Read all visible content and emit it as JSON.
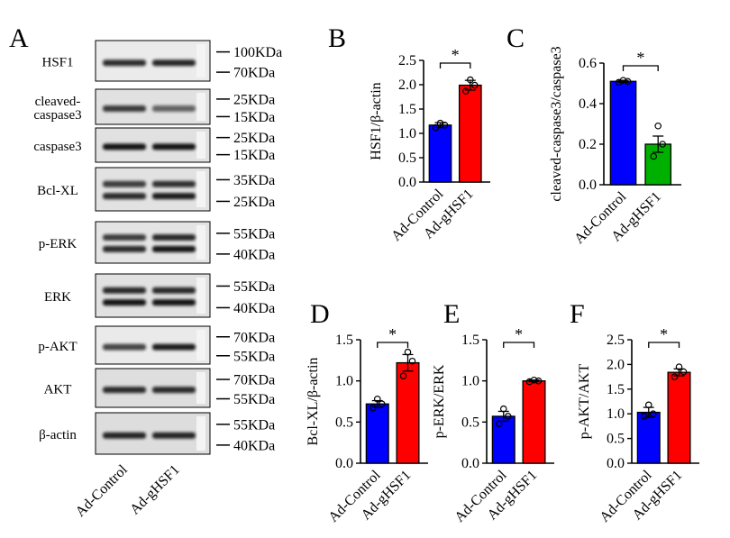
{
  "figure": {
    "panel_a": {
      "letter": "A",
      "rows": [
        {
          "label": "HSF1",
          "markers": [
            "100KDa",
            "70KDa"
          ],
          "bands": [
            0.8,
            0.85
          ],
          "tone": 0.55
        },
        {
          "label": "cleaved-\ncaspase3",
          "markers": [
            "25KDa",
            "15KDa"
          ],
          "bands": [
            0.7,
            0.45
          ],
          "tone": 0.85
        },
        {
          "label": "caspase3",
          "markers": [
            "25KDa",
            "15KDa"
          ],
          "bands": [
            0.95,
            0.95
          ],
          "tone": 0.85
        },
        {
          "label": "Bcl-XL",
          "markers": [
            "35KDa",
            "25KDa"
          ],
          "bands": [
            0.8,
            0.9
          ],
          "tone": 0.8,
          "doublet": true
        },
        {
          "label": "p-ERK",
          "markers": [
            "55KDa",
            "40KDa"
          ],
          "bands": [
            0.8,
            0.95
          ],
          "tone": 0.75,
          "doublet": true
        },
        {
          "label": "ERK",
          "markers": [
            "55KDa",
            "40KDa"
          ],
          "bands": [
            0.95,
            0.95
          ],
          "tone": 0.85,
          "doublet": true
        },
        {
          "label": "p-AKT",
          "markers": [
            "70KDa",
            "55KDa"
          ],
          "bands": [
            0.65,
            0.9
          ],
          "tone": 0.6
        },
        {
          "label": "AKT",
          "markers": [
            "70KDa",
            "55KDa"
          ],
          "bands": [
            0.8,
            0.8
          ],
          "tone": 0.92
        },
        {
          "label": "β-actin",
          "markers": [
            "55KDa",
            "40KDa"
          ],
          "bands": [
            0.85,
            0.85
          ],
          "tone": 0.95
        }
      ],
      "lanes": [
        "Ad-Control",
        "Ad-gHSF1"
      ]
    },
    "colors": {
      "control": "#0000ff",
      "hsf1": "#ff0000",
      "hsf1_alt": "#00b000"
    }
  },
  "chart_data": [
    {
      "panel": "B",
      "type": "bar",
      "categories": [
        "Ad-Control",
        "Ad-gHSF1"
      ],
      "values": [
        1.17,
        1.99
      ],
      "errors": [
        0.05,
        0.1
      ],
      "points": [
        [
          1.12,
          1.17,
          1.21
        ],
        [
          1.87,
          1.99,
          2.1
        ]
      ],
      "colors": [
        "#0000ff",
        "#ff0000"
      ],
      "ylabel": "HSF1/β-actin",
      "ylim": [
        0,
        2.5
      ],
      "ticks": [
        "0.0",
        "0.5",
        "1.0",
        "1.5",
        "2.0",
        "2.5"
      ],
      "significance": "*"
    },
    {
      "panel": "C",
      "type": "bar",
      "categories": [
        "Ad-Control",
        "Ad-gHSF1"
      ],
      "values": [
        0.51,
        0.2
      ],
      "errors": [
        0.005,
        0.04
      ],
      "points": [
        [
          0.505,
          0.51,
          0.515
        ],
        [
          0.14,
          0.2,
          0.29
        ]
      ],
      "colors": [
        "#0000ff",
        "#00b000"
      ],
      "ylabel": "cleaved-caspase3/caspase3",
      "ylim": [
        0,
        0.6
      ],
      "ticks": [
        "0.0",
        "0.2",
        "0.4",
        "0.6"
      ],
      "significance": "*"
    },
    {
      "panel": "D",
      "type": "bar",
      "categories": [
        "Ad-Control",
        "Ad-gHSF1"
      ],
      "values": [
        0.72,
        1.22
      ],
      "errors": [
        0.04,
        0.1
      ],
      "points": [
        [
          0.67,
          0.72,
          0.78
        ],
        [
          1.06,
          1.24,
          1.35
        ]
      ],
      "colors": [
        "#0000ff",
        "#ff0000"
      ],
      "ylabel": "Bcl-XL/β-actin",
      "ylim": [
        0,
        1.5
      ],
      "ticks": [
        "0.0",
        "0.5",
        "1.0",
        "1.5"
      ],
      "significance": "*"
    },
    {
      "panel": "E",
      "type": "bar",
      "categories": [
        "Ad-Control",
        "Ad-gHSF1"
      ],
      "values": [
        0.57,
        1.0
      ],
      "errors": [
        0.06,
        0.01
      ],
      "points": [
        [
          0.48,
          0.57,
          0.66
        ],
        [
          0.99,
          1.0,
          1.01
        ]
      ],
      "colors": [
        "#0000ff",
        "#ff0000"
      ],
      "ylabel": "p-ERK/ERK",
      "ylim": [
        0,
        1.5
      ],
      "ticks": [
        "0.0",
        "0.5",
        "1.0",
        "1.5"
      ],
      "significance": "*"
    },
    {
      "panel": "F",
      "type": "bar",
      "categories": [
        "Ad-Control",
        "Ad-gHSF1"
      ],
      "values": [
        1.03,
        1.84
      ],
      "errors": [
        0.1,
        0.07
      ],
      "points": [
        [
          0.95,
          1.0,
          1.18
        ],
        [
          1.75,
          1.85,
          1.95
        ]
      ],
      "colors": [
        "#0000ff",
        "#ff0000"
      ],
      "ylabel": "p-AKT/AKT",
      "ylim": [
        0,
        2.5
      ],
      "ticks": [
        "0.0",
        "0.5",
        "1.0",
        "1.5",
        "2.0",
        "2.5"
      ],
      "significance": "*"
    }
  ]
}
